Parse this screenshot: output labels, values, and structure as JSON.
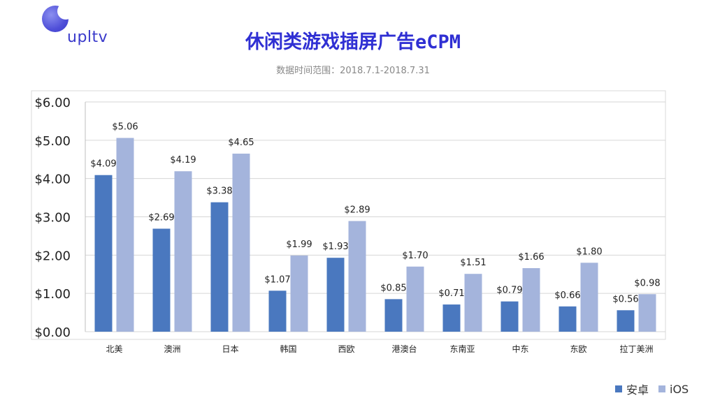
{
  "brand": {
    "name": "upltv"
  },
  "header": {
    "title": "休闲类游戏插屏广告eCPM",
    "subtitle": "数据时间范围：2018.7.1-2018.7.31"
  },
  "colors": {
    "android": "#4a78bf",
    "ios": "#a4b4dc",
    "title": "#2f2fd3"
  },
  "chart_data": {
    "type": "bar",
    "categories": [
      "北美",
      "澳洲",
      "日本",
      "韩国",
      "西欧",
      "港澳台",
      "东南亚",
      "中东",
      "东欧",
      "拉丁美洲"
    ],
    "series": [
      {
        "name": "安卓",
        "values": [
          4.09,
          2.69,
          3.38,
          1.07,
          1.93,
          0.85,
          0.71,
          0.79,
          0.66,
          0.56
        ],
        "labels": [
          "$4.09",
          "$2.69",
          "$3.38",
          "$1.07",
          "$1.93",
          "$0.85",
          "$0.71",
          "$0.79",
          "$0.66",
          "$0.56"
        ]
      },
      {
        "name": "iOS",
        "values": [
          5.06,
          4.19,
          4.65,
          1.99,
          2.89,
          1.7,
          1.51,
          1.66,
          1.8,
          0.98
        ],
        "labels": [
          "$5.06",
          "$4.19",
          "$4.65",
          "$1.99",
          "$2.89",
          "$1.70",
          "$1.51",
          "$1.66",
          "$1.80",
          "$0.98"
        ]
      }
    ],
    "ylim": [
      0,
      6
    ],
    "yticks": [
      "$0.00",
      "$1.00",
      "$2.00",
      "$3.00",
      "$4.00",
      "$5.00",
      "$6.00"
    ],
    "grid": true,
    "legend": "bottom-right"
  }
}
